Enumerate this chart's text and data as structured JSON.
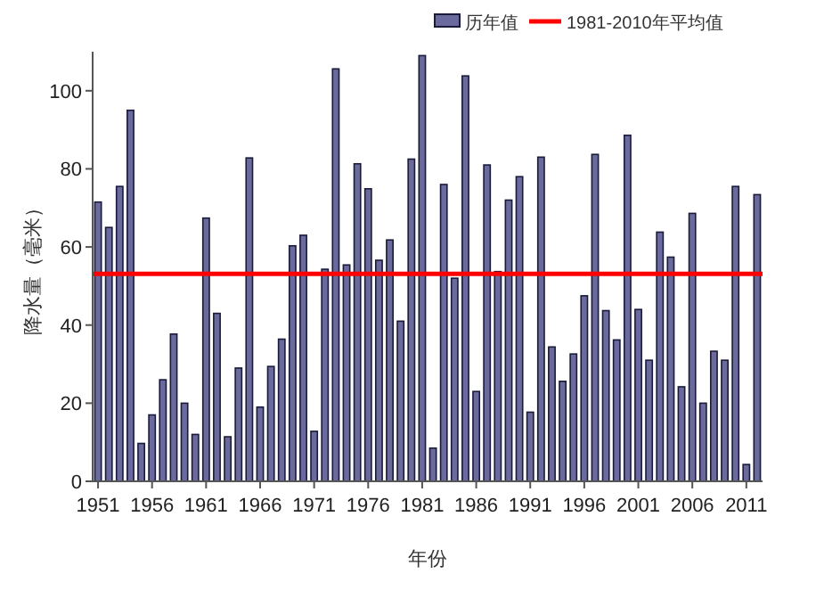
{
  "chart_data": {
    "type": "bar",
    "xlabel": "年份",
    "ylabel": "降水量（毫米）",
    "x": [
      1951,
      1952,
      1953,
      1954,
      1955,
      1956,
      1957,
      1958,
      1959,
      1960,
      1961,
      1962,
      1963,
      1964,
      1965,
      1966,
      1967,
      1968,
      1969,
      1970,
      1971,
      1972,
      1973,
      1974,
      1975,
      1976,
      1977,
      1978,
      1979,
      1980,
      1981,
      1982,
      1983,
      1984,
      1985,
      1986,
      1987,
      1988,
      1989,
      1990,
      1991,
      1992,
      1993,
      1994,
      1995,
      1996,
      1997,
      1998,
      1999,
      2000,
      2001,
      2002,
      2003,
      2004,
      2005,
      2006,
      2007,
      2008,
      2009,
      2010,
      2011,
      2012
    ],
    "series": [
      {
        "name": "历年值",
        "color": "#6a6a9c",
        "values": [
          71.5,
          65,
          75.5,
          95,
          9.7,
          17,
          26,
          37.7,
          20,
          12,
          67.4,
          43,
          11.4,
          29,
          82.8,
          19,
          29.4,
          36.4,
          60.3,
          63,
          12.8,
          54.3,
          105.6,
          55.4,
          81.3,
          74.9,
          56.6,
          61.8,
          41,
          82.5,
          109,
          8.5,
          76,
          52,
          103.8,
          23,
          81,
          53.7,
          72,
          78,
          17.7,
          83,
          34.4,
          25.6,
          32.6,
          47.5,
          83.7,
          43.7,
          36.2,
          88.6,
          44,
          31,
          63.8,
          57.4,
          24.2,
          68.6,
          20,
          33.3,
          31,
          75.5,
          4.3,
          73.4
        ]
      }
    ],
    "xlim": [
      1950.5,
      2012.5
    ],
    "xticks": [
      1951,
      1956,
      1961,
      1966,
      1971,
      1976,
      1981,
      1986,
      1991,
      1996,
      2001,
      2006,
      2011
    ],
    "ylim": [
      0,
      110
    ],
    "yticks": [
      0,
      20,
      40,
      60,
      80,
      100
    ],
    "ref_lines": [
      {
        "axis": "y",
        "value": 53.1,
        "label": "1981-2010年平均值",
        "color": "#ff0000",
        "line_style": "solid"
      }
    ],
    "legend": "top right",
    "grid": false
  }
}
